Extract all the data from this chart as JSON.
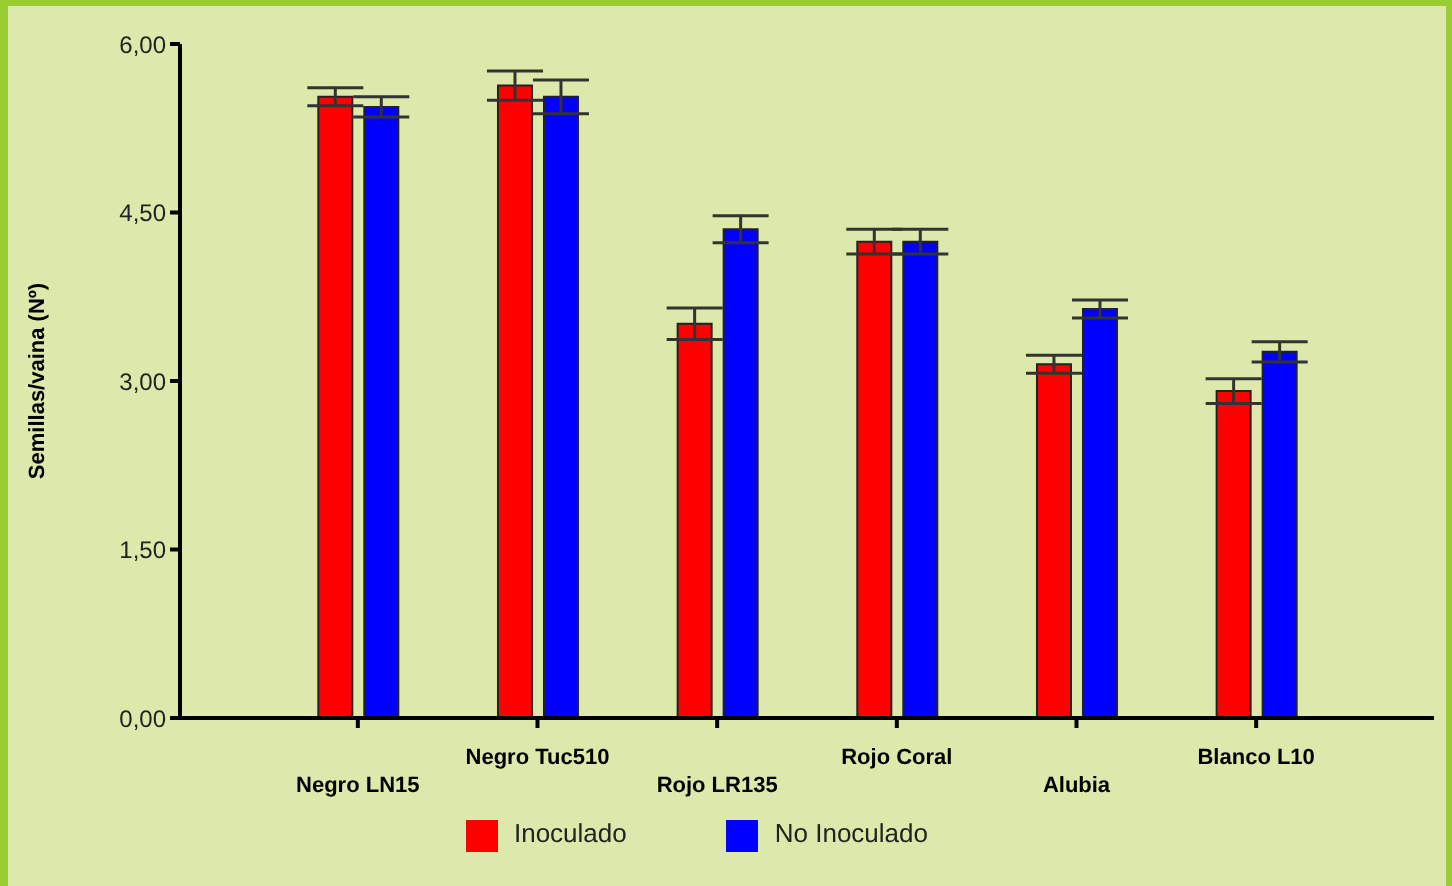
{
  "chart_data": {
    "type": "bar",
    "ylabel": "Semillas/vaina (Nº)",
    "categories": [
      "Negro LN15",
      "Negro Tuc510",
      "Rojo LR135",
      "Rojo Coral",
      "Alubia",
      "Blanco L10"
    ],
    "series": [
      {
        "name": "Inoculado",
        "color": "#ff0000",
        "values": [
          5.53,
          5.63,
          3.51,
          4.24,
          3.15,
          2.91
        ],
        "errors": [
          0.08,
          0.13,
          0.14,
          0.11,
          0.08,
          0.11
        ]
      },
      {
        "name": "No Inoculado",
        "color": "#0000ff",
        "values": [
          5.44,
          5.53,
          4.35,
          4.24,
          3.64,
          3.26
        ],
        "errors": [
          0.09,
          0.15,
          0.12,
          0.11,
          0.08,
          0.09
        ]
      }
    ],
    "ylim": [
      0,
      6
    ],
    "yticks": [
      {
        "value": 0,
        "label": "0,00"
      },
      {
        "value": 1.5,
        "label": "1,50"
      },
      {
        "value": 3,
        "label": "3,00"
      },
      {
        "value": 4.5,
        "label": "4,50"
      },
      {
        "value": 6,
        "label": "6,00"
      }
    ],
    "grid": false,
    "legend": "bottom"
  }
}
